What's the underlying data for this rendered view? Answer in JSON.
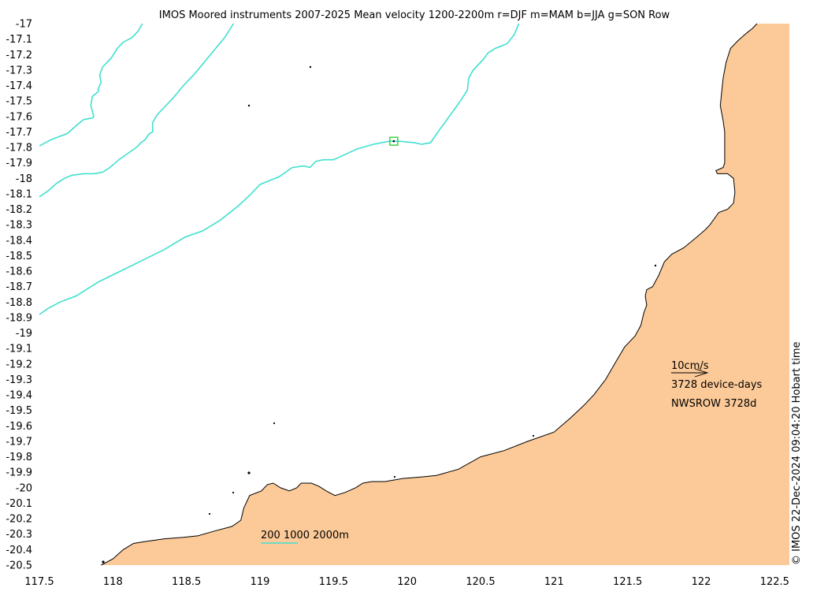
{
  "title": "IMOS Moored instruments 2007-2025 Mean velocity 1200-2200m r=DJF m=MAM b=JJA g=SON Row",
  "credit": "© IMOS 22-Dec-2024 09:04:20 Hobart time",
  "colors": {
    "land": "#FCCA98",
    "coastline": "#000000",
    "isobath": "#40E0D0",
    "station": "#22CC22",
    "background": "#FFFFFF"
  },
  "chart_data": {
    "type": "map",
    "x_axis": {
      "lim": [
        117.5,
        122.6
      ],
      "ticks": [
        "117.5",
        "118",
        "118.5",
        "119",
        "119.5",
        "120",
        "120.5",
        "121",
        "121.5",
        "122",
        "122.5"
      ],
      "tick_values": [
        117.5,
        118,
        118.5,
        119,
        119.5,
        120,
        120.5,
        121,
        121.5,
        122,
        122.5
      ]
    },
    "y_axis": {
      "lim": [
        -20.5,
        -17
      ],
      "ticks": [
        "-17",
        "-17.1",
        "-17.2",
        "-17.3",
        "-17.4",
        "-17.5",
        "-17.6",
        "-17.7",
        "-17.8",
        "-17.9",
        "-18",
        "-18.1",
        "-18.2",
        "-18.3",
        "-18.4",
        "-18.5",
        "-18.6",
        "-18.7",
        "-18.8",
        "-18.9",
        "-19",
        "-19.1",
        "-19.2",
        "-19.3",
        "-19.4",
        "-19.5",
        "-19.6",
        "-19.7",
        "-19.8",
        "-19.9",
        "-20",
        "-20.1",
        "-20.2",
        "-20.3",
        "-20.4",
        "-20.5"
      ],
      "tick_values": [
        -17,
        -17.1,
        -17.2,
        -17.3,
        -17.4,
        -17.5,
        -17.6,
        -17.7,
        -17.8,
        -17.9,
        -18,
        -18.1,
        -18.2,
        -18.3,
        -18.4,
        -18.5,
        -18.6,
        -18.7,
        -18.8,
        -18.9,
        -19,
        -19.1,
        -19.2,
        -19.3,
        -19.4,
        -19.5,
        -19.6,
        -19.7,
        -19.8,
        -19.9,
        -20,
        -20.1,
        -20.2,
        -20.3,
        -20.4,
        -20.5
      ]
    },
    "station": {
      "name": "NWSROW",
      "lon": 119.91,
      "lat": -17.76,
      "device_days": 3728
    },
    "legend": {
      "speed_scale_label": "10cm/s",
      "device_days_label": "3728 device-days",
      "station_label": "NWSROW 3728d",
      "isobaths_label": "200 1000 2000m"
    },
    "isobaths": [
      {
        "depth_m": 200,
        "points": [
          [
            117.5,
            -17.79
          ],
          [
            117.58,
            -17.75
          ],
          [
            117.69,
            -17.71
          ],
          [
            117.75,
            -17.66
          ],
          [
            117.8,
            -17.62
          ],
          [
            117.86,
            -17.61
          ],
          [
            117.87,
            -17.6
          ],
          [
            117.85,
            -17.53
          ],
          [
            117.86,
            -17.47
          ],
          [
            117.9,
            -17.44
          ],
          [
            117.9,
            -17.42
          ],
          [
            117.92,
            -17.38
          ],
          [
            117.91,
            -17.33
          ],
          [
            117.93,
            -17.28
          ],
          [
            117.99,
            -17.22
          ],
          [
            118.03,
            -17.16
          ],
          [
            118.07,
            -17.12
          ],
          [
            118.13,
            -17.09
          ],
          [
            118.17,
            -17.05
          ],
          [
            118.2,
            -17.0
          ]
        ]
      },
      {
        "depth_m": 1000,
        "points": [
          [
            117.5,
            -18.12
          ],
          [
            117.56,
            -18.08
          ],
          [
            117.62,
            -18.03
          ],
          [
            117.67,
            -18.0
          ],
          [
            117.72,
            -17.98
          ],
          [
            117.8,
            -17.97
          ],
          [
            117.87,
            -17.97
          ],
          [
            117.93,
            -17.96
          ],
          [
            117.98,
            -17.93
          ],
          [
            118.04,
            -17.88
          ],
          [
            118.1,
            -17.84
          ],
          [
            118.16,
            -17.8
          ],
          [
            118.19,
            -17.77
          ],
          [
            118.22,
            -17.75
          ],
          [
            118.24,
            -17.72
          ],
          [
            118.25,
            -17.71
          ],
          [
            118.27,
            -17.7
          ],
          [
            118.27,
            -17.64
          ],
          [
            118.3,
            -17.59
          ],
          [
            118.35,
            -17.54
          ],
          [
            118.41,
            -17.48
          ],
          [
            118.48,
            -17.4
          ],
          [
            118.55,
            -17.33
          ],
          [
            118.62,
            -17.25
          ],
          [
            118.69,
            -17.17
          ],
          [
            118.76,
            -17.09
          ],
          [
            118.82,
            -17.0
          ]
        ]
      },
      {
        "depth_m": 2000,
        "points": [
          [
            117.5,
            -18.88
          ],
          [
            117.56,
            -18.84
          ],
          [
            117.64,
            -18.8
          ],
          [
            117.75,
            -18.76
          ],
          [
            117.9,
            -18.67
          ],
          [
            118.05,
            -18.6
          ],
          [
            118.2,
            -18.53
          ],
          [
            118.35,
            -18.46
          ],
          [
            118.49,
            -18.38
          ],
          [
            118.61,
            -18.34
          ],
          [
            118.73,
            -18.27
          ],
          [
            118.85,
            -18.18
          ],
          [
            118.93,
            -18.11
          ],
          [
            119.0,
            -18.04
          ],
          [
            119.05,
            -18.02
          ],
          [
            119.13,
            -17.99
          ],
          [
            119.22,
            -17.93
          ],
          [
            119.3,
            -17.92
          ],
          [
            119.34,
            -17.93
          ],
          [
            119.38,
            -17.89
          ],
          [
            119.43,
            -17.88
          ],
          [
            119.5,
            -17.88
          ],
          [
            119.57,
            -17.85
          ],
          [
            119.66,
            -17.81
          ],
          [
            119.77,
            -17.78
          ],
          [
            119.88,
            -17.76
          ],
          [
            119.95,
            -17.76
          ],
          [
            120.05,
            -17.77
          ],
          [
            120.1,
            -17.78
          ],
          [
            120.16,
            -17.77
          ],
          [
            120.21,
            -17.7
          ],
          [
            120.31,
            -17.57
          ],
          [
            120.37,
            -17.49
          ],
          [
            120.41,
            -17.43
          ],
          [
            120.42,
            -17.35
          ],
          [
            120.45,
            -17.3
          ],
          [
            120.52,
            -17.23
          ],
          [
            120.55,
            -17.19
          ],
          [
            120.6,
            -17.16
          ],
          [
            120.68,
            -17.13
          ],
          [
            120.73,
            -17.07
          ],
          [
            120.76,
            -17.0
          ]
        ]
      }
    ],
    "coastline": [
      [
        117.92,
        -20.5
      ],
      [
        118.0,
        -20.46
      ],
      [
        118.07,
        -20.4
      ],
      [
        118.14,
        -20.36
      ],
      [
        118.2,
        -20.35
      ],
      [
        118.35,
        -20.33
      ],
      [
        118.48,
        -20.32
      ],
      [
        118.58,
        -20.31
      ],
      [
        118.69,
        -20.28
      ],
      [
        118.81,
        -20.25
      ],
      [
        118.87,
        -20.21
      ],
      [
        118.89,
        -20.13
      ],
      [
        118.93,
        -20.05
      ],
      [
        119.01,
        -20.02
      ],
      [
        119.05,
        -19.98
      ],
      [
        119.09,
        -19.97
      ],
      [
        119.14,
        -20.0
      ],
      [
        119.2,
        -20.02
      ],
      [
        119.25,
        -20.0
      ],
      [
        119.28,
        -19.97
      ],
      [
        119.35,
        -19.97
      ],
      [
        119.4,
        -19.99
      ],
      [
        119.45,
        -20.02
      ],
      [
        119.51,
        -20.05
      ],
      [
        119.58,
        -20.03
      ],
      [
        119.65,
        -20.0
      ],
      [
        119.7,
        -19.97
      ],
      [
        119.76,
        -19.96
      ],
      [
        119.85,
        -19.96
      ],
      [
        119.97,
        -19.94
      ],
      [
        120.1,
        -19.93
      ],
      [
        120.2,
        -19.92
      ],
      [
        120.35,
        -19.88
      ],
      [
        120.5,
        -19.8
      ],
      [
        120.66,
        -19.76
      ],
      [
        120.82,
        -19.7
      ],
      [
        121.0,
        -19.64
      ],
      [
        121.11,
        -19.55
      ],
      [
        121.2,
        -19.47
      ],
      [
        121.27,
        -19.4
      ],
      [
        121.35,
        -19.3
      ],
      [
        121.43,
        -19.17
      ],
      [
        121.48,
        -19.09
      ],
      [
        121.55,
        -19.02
      ],
      [
        121.59,
        -18.95
      ],
      [
        121.61,
        -18.87
      ],
      [
        121.63,
        -18.82
      ],
      [
        121.62,
        -18.76
      ],
      [
        121.63,
        -18.72
      ],
      [
        121.67,
        -18.7
      ],
      [
        121.71,
        -18.63
      ],
      [
        121.75,
        -18.54
      ],
      [
        121.8,
        -18.49
      ],
      [
        121.88,
        -18.45
      ],
      [
        121.97,
        -18.38
      ],
      [
        122.03,
        -18.33
      ],
      [
        122.06,
        -18.3
      ],
      [
        122.12,
        -18.22
      ],
      [
        122.18,
        -18.2
      ],
      [
        122.22,
        -18.16
      ],
      [
        122.23,
        -18.09
      ],
      [
        122.22,
        -18.0
      ],
      [
        122.18,
        -17.97
      ],
      [
        122.11,
        -17.97
      ],
      [
        122.1,
        -17.95
      ],
      [
        122.15,
        -17.93
      ],
      [
        122.16,
        -17.9
      ],
      [
        122.16,
        -17.8
      ],
      [
        122.16,
        -17.7
      ],
      [
        122.15,
        -17.63
      ],
      [
        122.13,
        -17.53
      ],
      [
        122.14,
        -17.44
      ],
      [
        122.15,
        -17.35
      ],
      [
        122.17,
        -17.25
      ],
      [
        122.2,
        -17.16
      ],
      [
        122.25,
        -17.11
      ],
      [
        122.31,
        -17.06
      ],
      [
        122.35,
        -17.03
      ],
      [
        122.38,
        -17.0
      ]
    ]
  }
}
